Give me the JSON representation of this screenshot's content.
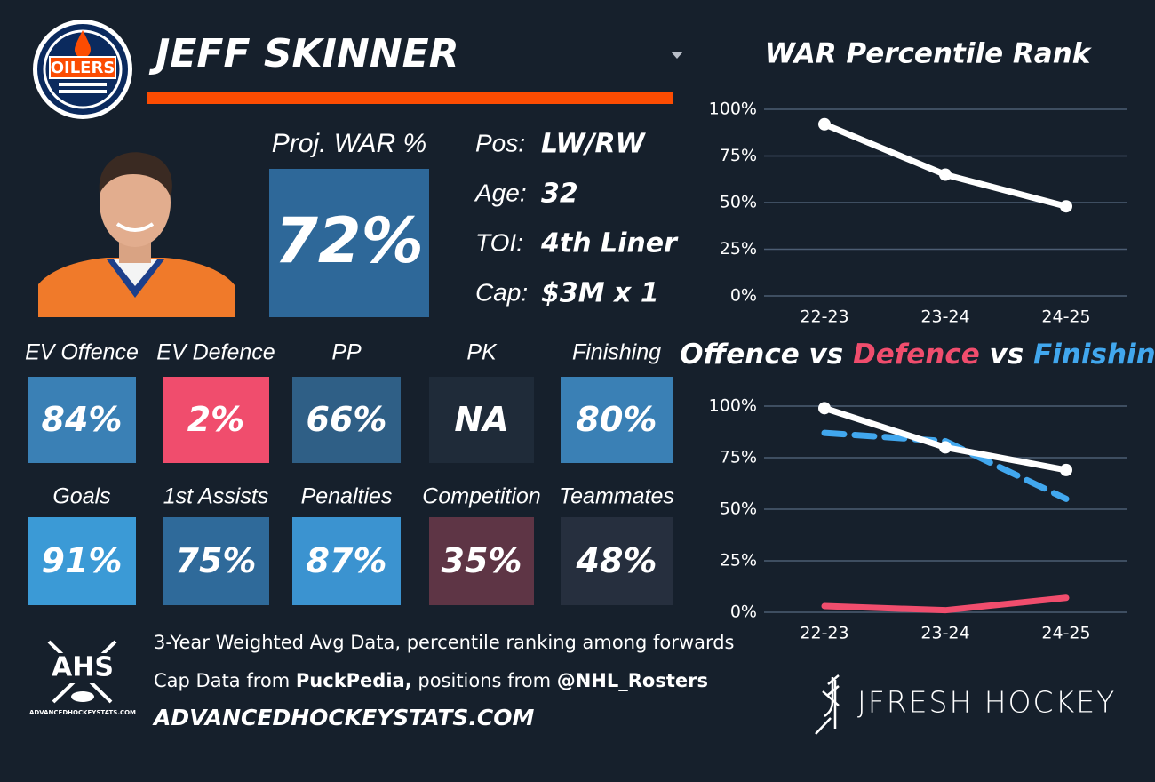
{
  "header": {
    "player": "JEFF SKINNER",
    "logo_text": "OILERS"
  },
  "projection": {
    "label": "Proj. WAR %",
    "value": "72%",
    "color": "#2e6899"
  },
  "info": [
    {
      "label": "Pos:",
      "value": "LW/RW"
    },
    {
      "label": "Age:",
      "value": "32"
    },
    {
      "label": "TOI:",
      "value": "4th Liner"
    },
    {
      "label": "Cap:",
      "value": "$3M x 1"
    }
  ],
  "tiles": [
    [
      {
        "label": "EV Offence",
        "value": "84%",
        "color": "#3a80b5"
      },
      {
        "label": "EV Defence",
        "value": "2%",
        "color": "#f04d6d"
      },
      {
        "label": "PP",
        "value": "66%",
        "color": "#2f5f86"
      },
      {
        "label": "PK",
        "value": "NA",
        "color": "#1f2b39"
      },
      {
        "label": "Finishing",
        "value": "80%",
        "color": "#3a80b5"
      }
    ],
    [
      {
        "label": "Goals",
        "value": "91%",
        "color": "#3b9ad6"
      },
      {
        "label": "1st Assists",
        "value": "75%",
        "color": "#2f6a9a"
      },
      {
        "label": "Penalties",
        "value": "87%",
        "color": "#3b93d0"
      },
      {
        "label": "Competition",
        "value": "35%",
        "color": "#5e3545"
      },
      {
        "label": "Teammates",
        "value": "48%",
        "color": "#262f3e"
      }
    ]
  ],
  "footer": {
    "line1": "3-Year Weighted Avg Data, percentile ranking among forwards",
    "line2": [
      "Cap Data from ",
      "PuckPedia,",
      " positions from ",
      "@NHL_Rosters"
    ],
    "url": "ADVANCEDHOCKEYSTATS.COM",
    "ahs_logo": "AHS",
    "ahs_sub": "ADVANCEDHOCKEYSTATS.COM",
    "brand": "JFRESH HOCKEY"
  },
  "chart_data": [
    {
      "type": "line",
      "title": "WAR Percentile Rank",
      "categories": [
        "22-23",
        "23-24",
        "24-25"
      ],
      "series": [
        {
          "color": "#ffffff",
          "values": [
            92,
            65,
            48
          ],
          "markers": true
        }
      ],
      "ylim": [
        0,
        100
      ],
      "yticks": [
        {
          "value": 0,
          "label": "0%"
        },
        {
          "value": 25,
          "label": "25%"
        },
        {
          "value": 50,
          "label": "50%"
        },
        {
          "value": 75,
          "label": "75%"
        },
        {
          "value": 100,
          "label": "100%"
        }
      ],
      "grid": true
    },
    {
      "type": "line",
      "title_separator": "vs",
      "categories": [
        "22-23",
        "23-24",
        "24-25"
      ],
      "series": [
        {
          "name": "Offence",
          "color": "#ffffff",
          "values": [
            99,
            80,
            69
          ],
          "markers": true
        },
        {
          "name": "Defence",
          "color": "#f04d6d",
          "values": [
            3,
            1,
            7
          ]
        },
        {
          "name": "Finishing",
          "color": "#41a7ee",
          "values": [
            87,
            83,
            55
          ],
          "line_style": "dashed"
        }
      ],
      "ylim": [
        0,
        100
      ],
      "yticks": [
        {
          "value": 0,
          "label": "0%"
        },
        {
          "value": 25,
          "label": "25%"
        },
        {
          "value": 50,
          "label": "50%"
        },
        {
          "value": 75,
          "label": "75%"
        },
        {
          "value": 100,
          "label": "100%"
        }
      ],
      "grid": true
    }
  ]
}
